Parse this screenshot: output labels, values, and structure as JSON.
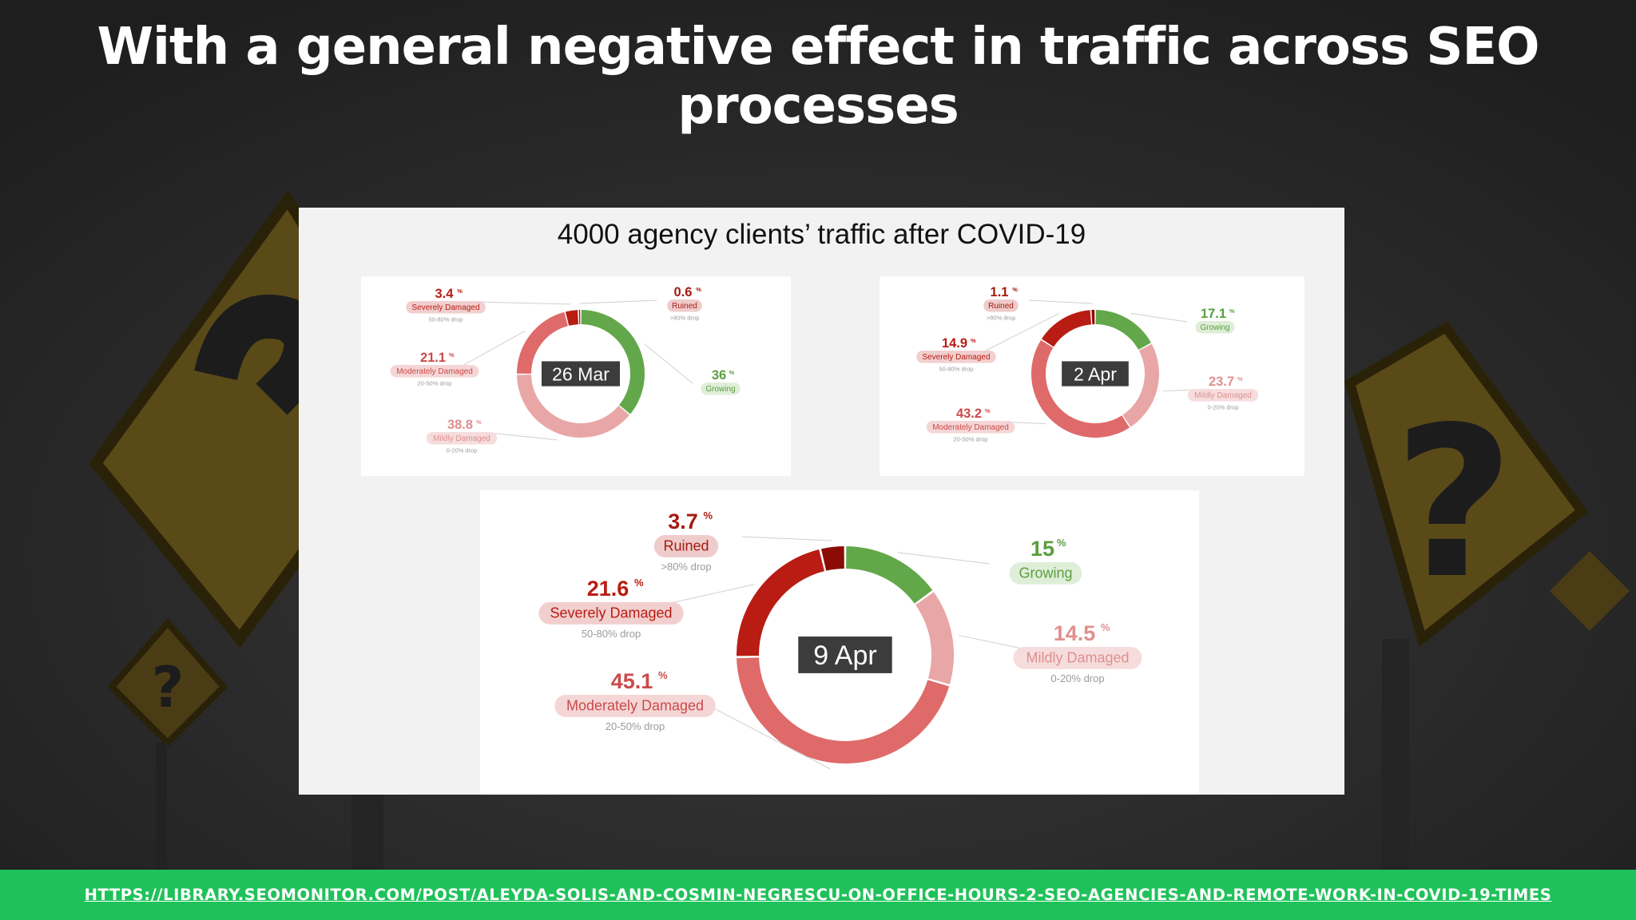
{
  "slide": {
    "title": "With a general negative effect in traffic across SEO processes",
    "source_url": "HTTPS://LIBRARY.SEOMONITOR.COM/POST/ALEYDA-SOLIS-AND-COSMIN-NEGRESCU-ON-OFFICE-HOURS-2-SEO-AGENCIES-AND-REMOTE-WORK-IN-COVID-19-TIMES"
  },
  "colors": {
    "background": "#262626",
    "footer": "#1fc25a",
    "ruined": "#8b0c05",
    "severely_damaged": "#b81c12",
    "moderately_damaged": "#df6a6a",
    "mildly_damaged": "#e9a6a6",
    "growing": "#62a84a"
  },
  "chart_data": {
    "title": "4000 agency clients’ traffic after COVID-19",
    "charts": [
      {
        "type": "pie",
        "center_label": "26 Mar",
        "slices": [
          {
            "key": "growing",
            "value": "36",
            "label": "Growing",
            "note": ""
          },
          {
            "key": "mildly_damaged",
            "value": "38.8",
            "label": "Mildly Damaged",
            "note": "0-20% drop"
          },
          {
            "key": "moderately_damaged",
            "value": "21.1",
            "label": "Moderately Damaged",
            "note": "20-50% drop"
          },
          {
            "key": "severely_damaged",
            "value": "3.4",
            "label": "Severely Damaged",
            "note": "50-80% drop"
          },
          {
            "key": "ruined",
            "value": "0.6",
            "label": "Ruined",
            "note": ">80% drop"
          }
        ]
      },
      {
        "type": "pie",
        "center_label": "2 Apr",
        "slices": [
          {
            "key": "growing",
            "value": "17.1",
            "label": "Growing",
            "note": ""
          },
          {
            "key": "mildly_damaged",
            "value": "23.7",
            "label": "Mildly Damaged",
            "note": "0-20% drop"
          },
          {
            "key": "moderately_damaged",
            "value": "43.2",
            "label": "Moderately Damaged",
            "note": "20-50% drop"
          },
          {
            "key": "severely_damaged",
            "value": "14.9",
            "label": "Severely Damaged",
            "note": "50-80% drop"
          },
          {
            "key": "ruined",
            "value": "1.1",
            "label": "Ruined",
            "note": ">80% drop"
          }
        ]
      },
      {
        "type": "pie",
        "center_label": "9 Apr",
        "slices": [
          {
            "key": "growing",
            "value": "15",
            "label": "Growing",
            "note": ""
          },
          {
            "key": "mildly_damaged",
            "value": "14.5",
            "label": "Mildly Damaged",
            "note": "0-20% drop"
          },
          {
            "key": "moderately_damaged",
            "value": "45.1",
            "label": "Moderately Damaged",
            "note": "20-50% drop"
          },
          {
            "key": "severely_damaged",
            "value": "21.6",
            "label": "Severely Damaged",
            "note": "50-80% drop"
          },
          {
            "key": "ruined",
            "value": "3.7",
            "label": "Ruined",
            "note": ">80% drop"
          }
        ]
      }
    ]
  }
}
